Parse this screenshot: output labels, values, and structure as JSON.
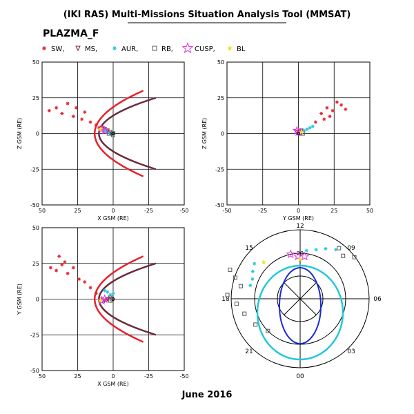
{
  "header": {
    "title": "(IKI RAS) Multi-Missions Situation Analysis Tool (MMSAT)",
    "mission": "PLAZMA_F",
    "date_label": "June 2016"
  },
  "legend": {
    "items": [
      {
        "label": "SW,",
        "marker": "asterisk",
        "color": "#e8202a"
      },
      {
        "label": "MS,",
        "marker": "triangle-down",
        "color": "#7a1a2a"
      },
      {
        "label": "AUR,",
        "marker": "asterisk",
        "color": "#22c8d8"
      },
      {
        "label": "RB,",
        "marker": "square",
        "color": "#555555"
      },
      {
        "label": "CUSP,",
        "marker": "star",
        "color": "#e030e0"
      },
      {
        "label": "BL",
        "marker": "star-small",
        "color": "#f0e020"
      }
    ]
  },
  "colors": {
    "sw": "#e8202a",
    "ms": "#7a1a2a",
    "aur": "#22c8d8",
    "rb": "#555555",
    "cusp": "#e030e0",
    "bl": "#f0e020",
    "magnetopause": "#6b2a3a",
    "bowshock": "#e8202a",
    "polar_blue": "#1a2ad8",
    "polar_cyan": "#22c8d8"
  },
  "chart_data": [
    {
      "type": "scatter",
      "name": "xz",
      "xlabel": "X GSM (RE)",
      "ylabel": "Z GSM (RE)",
      "xlim": [
        50,
        -50
      ],
      "ylim": [
        -50,
        50
      ],
      "xticks": [
        50,
        25,
        0,
        -25,
        -50
      ],
      "yticks": [
        50,
        25,
        0,
        -25,
        -50
      ],
      "grid": true,
      "series": [
        {
          "key": "sw",
          "points": [
            [
              45,
              16
            ],
            [
              40,
              18
            ],
            [
              36,
              14
            ],
            [
              32,
              21
            ],
            [
              28,
              12
            ],
            [
              26,
              18
            ],
            [
              22,
              10
            ],
            [
              20,
              15
            ],
            [
              16,
              8
            ],
            [
              12,
              6
            ],
            [
              10,
              4
            ]
          ]
        },
        {
          "key": "ms",
          "points": [
            [
              8,
              4
            ],
            [
              6,
              3
            ],
            [
              4,
              2
            ],
            [
              2,
              1
            ],
            [
              0,
              0
            ]
          ]
        },
        {
          "key": "aur",
          "points": [
            [
              6,
              2
            ],
            [
              4,
              1
            ],
            [
              2,
              0
            ],
            [
              0,
              1
            ]
          ]
        },
        {
          "key": "rb",
          "points": [
            [
              3,
              0
            ],
            [
              1,
              0
            ],
            [
              0,
              -1
            ]
          ]
        },
        {
          "key": "cusp",
          "points": [
            [
              8,
              3
            ],
            [
              6,
              2
            ]
          ]
        },
        {
          "key": "bl",
          "points": [
            [
              9,
              3
            ]
          ]
        }
      ]
    },
    {
      "type": "scatter",
      "name": "yz",
      "xlabel": "Y GSM (RE)",
      "ylabel": "Z GSM (RE)",
      "xlim": [
        -50,
        50
      ],
      "ylim": [
        -50,
        50
      ],
      "xticks": [
        -50,
        -25,
        0,
        25,
        50
      ],
      "yticks": [
        50,
        25,
        0,
        -25,
        -50
      ],
      "grid": true,
      "series": [
        {
          "key": "sw",
          "points": [
            [
              12,
              8
            ],
            [
              16,
              14
            ],
            [
              20,
              18
            ],
            [
              24,
              16
            ],
            [
              27,
              22
            ],
            [
              30,
              20
            ],
            [
              33,
              17
            ],
            [
              18,
              10
            ],
            [
              22,
              12
            ]
          ]
        },
        {
          "key": "ms",
          "points": [
            [
              2,
              2
            ],
            [
              0,
              1
            ],
            [
              -1,
              1
            ]
          ]
        },
        {
          "key": "aur",
          "points": [
            [
              6,
              3
            ],
            [
              8,
              4
            ],
            [
              10,
              5
            ],
            [
              4,
              2
            ]
          ]
        },
        {
          "key": "rb",
          "points": [
            [
              1,
              0
            ],
            [
              3,
              0
            ]
          ]
        },
        {
          "key": "cusp",
          "points": [
            [
              0,
              1
            ],
            [
              -1,
              2
            ]
          ]
        },
        {
          "key": "bl",
          "points": [
            [
              2,
              1
            ]
          ]
        }
      ]
    },
    {
      "type": "scatter",
      "name": "xy",
      "xlabel": "X GSM (RE)",
      "ylabel": "Y GSM (RE)",
      "xlim": [
        50,
        -50
      ],
      "ylim": [
        -50,
        50
      ],
      "xticks": [
        50,
        25,
        0,
        -25,
        -50
      ],
      "yticks": [
        -50,
        -25,
        0,
        25,
        50
      ],
      "grid": true,
      "series": [
        {
          "key": "sw",
          "points": [
            [
              40,
              20
            ],
            [
              36,
              24
            ],
            [
              32,
              18
            ],
            [
              28,
              22
            ],
            [
              24,
              14
            ],
            [
              38,
              30
            ],
            [
              34,
              26
            ],
            [
              44,
              22
            ],
            [
              20,
              12
            ],
            [
              16,
              8
            ],
            [
              12,
              4
            ]
          ]
        },
        {
          "key": "ms",
          "points": [
            [
              6,
              -1
            ],
            [
              4,
              0
            ],
            [
              2,
              1
            ]
          ]
        },
        {
          "key": "aur",
          "points": [
            [
              4,
              5
            ],
            [
              2,
              3
            ],
            [
              0,
              4
            ],
            [
              6,
              6
            ]
          ]
        },
        {
          "key": "rb",
          "points": [
            [
              2,
              -1
            ],
            [
              1,
              0
            ]
          ]
        },
        {
          "key": "cusp",
          "points": [
            [
              8,
              -1
            ],
            [
              6,
              0
            ]
          ]
        },
        {
          "key": "bl",
          "points": [
            [
              9,
              -1
            ]
          ]
        }
      ]
    },
    {
      "type": "polar",
      "name": "mlt",
      "mlt_labels": [
        "12",
        "15",
        "18",
        "21",
        "00",
        "03",
        "06",
        "09"
      ],
      "inner_label": "20",
      "series": [
        {
          "key": "rb",
          "points": [
            [
              16.5,
              50
            ],
            [
              16.8,
              55
            ],
            [
              17.2,
              60
            ],
            [
              17.8,
              52
            ],
            [
              18.3,
              58
            ],
            [
              19.0,
              62
            ],
            [
              20.0,
              66
            ],
            [
              21.0,
              70
            ],
            [
              8.5,
              55
            ],
            [
              9.0,
              60
            ],
            [
              9.5,
              58
            ]
          ]
        },
        {
          "key": "aur",
          "points": [
            [
              15.5,
              62
            ],
            [
              16.0,
              64
            ],
            [
              16.5,
              66
            ],
            [
              17.0,
              66
            ],
            [
              11.5,
              68
            ],
            [
              10.8,
              66
            ],
            [
              10.2,
              63
            ],
            [
              9.6,
              60
            ]
          ]
        },
        {
          "key": "cusp",
          "points": [
            [
              12.2,
              72
            ],
            [
              11.6,
              72
            ],
            [
              12.8,
              70
            ]
          ]
        },
        {
          "key": "bl",
          "points": [
            [
              15.0,
              66
            ],
            [
              12.0,
              74
            ]
          ]
        }
      ]
    }
  ]
}
